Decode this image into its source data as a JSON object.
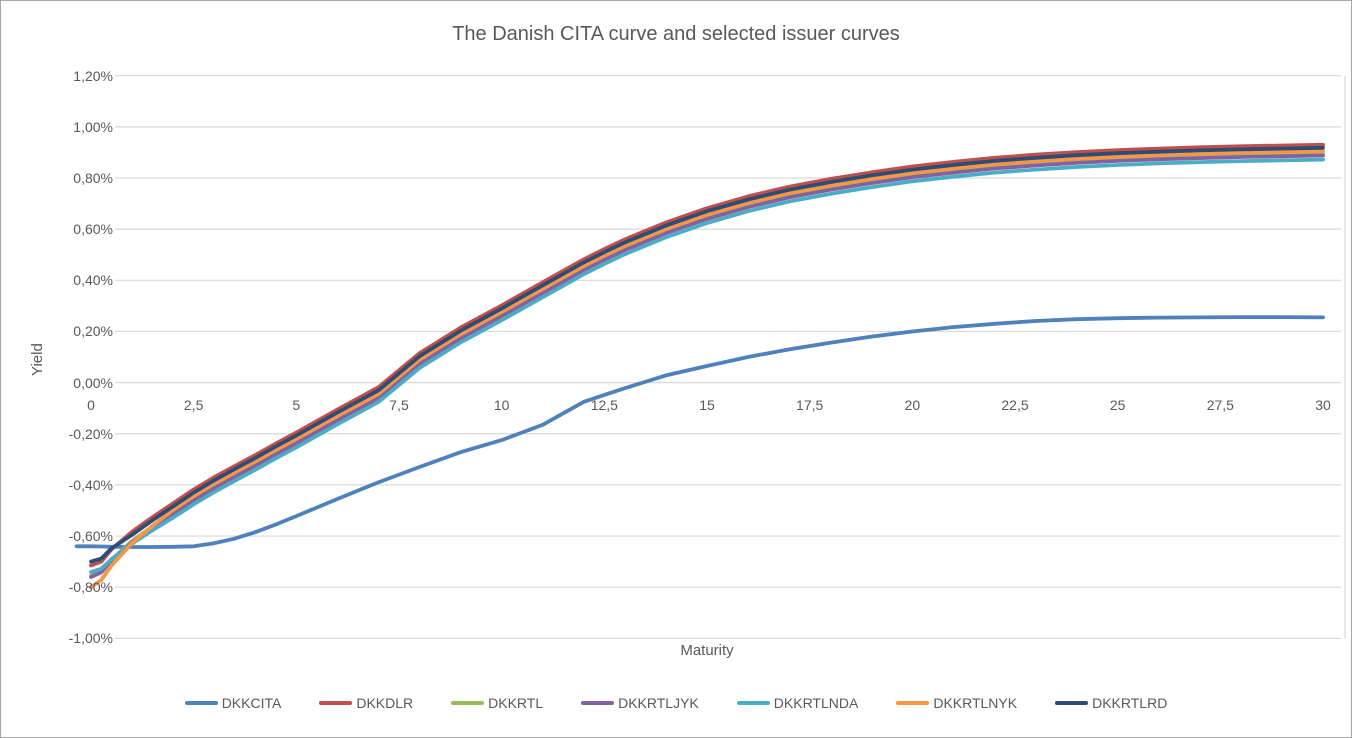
{
  "colors": {
    "text": "#595959",
    "gridline": "#d9d9d9",
    "background": "#ffffff",
    "frame": "#a6a6a6"
  },
  "chart_data": {
    "type": "line",
    "title": "The Danish CITA curve and selected issuer curves",
    "xlabel": "Maturity",
    "ylabel": "Yield",
    "xlim": [
      0,
      30
    ],
    "ylim": [
      -1.0,
      1.2
    ],
    "grid": "horizontal",
    "legend_position": "bottom",
    "y_ticks": [
      {
        "value": 1.2,
        "label": "1,20%"
      },
      {
        "value": 1.0,
        "label": "1,00%"
      },
      {
        "value": 0.8,
        "label": "0,80%"
      },
      {
        "value": 0.6,
        "label": "0,60%"
      },
      {
        "value": 0.4,
        "label": "0,40%"
      },
      {
        "value": 0.2,
        "label": "0,20%"
      },
      {
        "value": 0.0,
        "label": "0,00%"
      },
      {
        "value": -0.2,
        "label": "-0,20%"
      },
      {
        "value": -0.4,
        "label": "-0,40%"
      },
      {
        "value": -0.6,
        "label": "-0,60%"
      },
      {
        "value": -0.8,
        "label": "-0,80%"
      },
      {
        "value": -1.0,
        "label": "-1,00%"
      }
    ],
    "x_ticks": [
      {
        "value": 0,
        "label": "0"
      },
      {
        "value": 2.5,
        "label": "2,5"
      },
      {
        "value": 5,
        "label": "5"
      },
      {
        "value": 7.5,
        "label": "7,5"
      },
      {
        "value": 10,
        "label": "10"
      },
      {
        "value": 12.5,
        "label": "12,5"
      },
      {
        "value": 15,
        "label": "15"
      },
      {
        "value": 17.5,
        "label": "17,5"
      },
      {
        "value": 20,
        "label": "20"
      },
      {
        "value": 22.5,
        "label": "22,5"
      },
      {
        "value": 25,
        "label": "25"
      },
      {
        "value": 27.5,
        "label": "27,5"
      },
      {
        "value": 30,
        "label": "30"
      }
    ],
    "x": [
      0,
      0.25,
      0.5,
      1,
      1.5,
      2,
      2.5,
      3,
      3.5,
      4,
      4.5,
      5,
      6,
      7,
      8,
      9,
      10,
      11,
      12,
      12.5,
      13,
      14,
      15,
      16,
      17,
      18,
      19,
      20,
      21,
      22,
      23,
      24,
      25,
      26,
      27,
      28,
      29,
      30
    ],
    "series": [
      {
        "name": "DKKCITA",
        "color": "#4F81BD",
        "x": [
          -0.35,
          0,
          0.25,
          0.5,
          1,
          1.5,
          2,
          2.5,
          3,
          3.5,
          4,
          4.5,
          5,
          6,
          7,
          8,
          9,
          10,
          11,
          12,
          12.5,
          13,
          14,
          15,
          16,
          17,
          18,
          19,
          20,
          21,
          22,
          23,
          24,
          25,
          26,
          27,
          28,
          29,
          30
        ],
        "values": [
          -0.64,
          -0.64,
          -0.641,
          -0.642,
          -0.643,
          -0.643,
          -0.642,
          -0.64,
          -0.628,
          -0.61,
          -0.585,
          -0.555,
          -0.522,
          -0.455,
          -0.39,
          -0.33,
          -0.272,
          -0.225,
          -0.165,
          -0.075,
          -0.048,
          -0.022,
          0.028,
          0.065,
          0.1,
          0.13,
          0.156,
          0.18,
          0.2,
          0.217,
          0.23,
          0.241,
          0.248,
          0.252,
          0.254,
          0.255,
          0.256,
          0.256,
          0.255
        ]
      },
      {
        "name": "DKKDLR",
        "color": "#C0504D",
        "values": [
          -0.715,
          -0.7,
          -0.652,
          -0.583,
          -0.526,
          -0.472,
          -0.418,
          -0.37,
          -0.326,
          -0.283,
          -0.238,
          -0.195,
          -0.105,
          -0.018,
          0.115,
          0.215,
          0.302,
          0.392,
          0.482,
          0.522,
          0.56,
          0.626,
          0.682,
          0.728,
          0.766,
          0.796,
          0.822,
          0.845,
          0.863,
          0.879,
          0.891,
          0.901,
          0.909,
          0.915,
          0.92,
          0.924,
          0.927,
          0.93
        ]
      },
      {
        "name": "DKKRTL",
        "color": "#9BBB59",
        "values": [
          -0.755,
          -0.738,
          -0.692,
          -0.619,
          -0.562,
          -0.508,
          -0.454,
          -0.406,
          -0.362,
          -0.319,
          -0.274,
          -0.231,
          -0.141,
          -0.054,
          0.079,
          0.179,
          0.266,
          0.356,
          0.446,
          0.486,
          0.524,
          0.59,
          0.646,
          0.692,
          0.73,
          0.76,
          0.786,
          0.809,
          0.827,
          0.843,
          0.855,
          0.865,
          0.873,
          0.879,
          0.884,
          0.888,
          0.891,
          0.894
        ]
      },
      {
        "name": "DKKRTLJYK",
        "color": "#8064A2",
        "values": [
          -0.76,
          -0.742,
          -0.695,
          -0.625,
          -0.568,
          -0.514,
          -0.46,
          -0.412,
          -0.368,
          -0.325,
          -0.28,
          -0.237,
          -0.147,
          -0.06,
          0.073,
          0.173,
          0.26,
          0.35,
          0.44,
          0.48,
          0.518,
          0.584,
          0.64,
          0.686,
          0.724,
          0.754,
          0.78,
          0.803,
          0.821,
          0.837,
          0.849,
          0.859,
          0.867,
          0.873,
          0.878,
          0.882,
          0.885,
          0.888
        ]
      },
      {
        "name": "DKKRTLNDA",
        "color": "#4BACC6",
        "values": [
          -0.74,
          -0.728,
          -0.69,
          -0.63,
          -0.577,
          -0.528,
          -0.476,
          -0.428,
          -0.384,
          -0.341,
          -0.296,
          -0.253,
          -0.163,
          -0.076,
          0.057,
          0.157,
          0.244,
          0.334,
          0.424,
          0.464,
          0.502,
          0.568,
          0.624,
          0.67,
          0.708,
          0.738,
          0.764,
          0.787,
          0.805,
          0.821,
          0.833,
          0.843,
          0.851,
          0.857,
          0.862,
          0.866,
          0.869,
          0.872
        ]
      },
      {
        "name": "DKKRTLNYK",
        "color": "#F79646",
        "values": [
          -0.8,
          -0.772,
          -0.715,
          -0.628,
          -0.56,
          -0.498,
          -0.444,
          -0.396,
          -0.352,
          -0.309,
          -0.264,
          -0.221,
          -0.131,
          -0.044,
          0.089,
          0.189,
          0.276,
          0.366,
          0.456,
          0.496,
          0.534,
          0.6,
          0.656,
          0.702,
          0.74,
          0.77,
          0.796,
          0.819,
          0.837,
          0.853,
          0.865,
          0.875,
          0.883,
          0.889,
          0.894,
          0.898,
          0.901,
          0.904
        ]
      },
      {
        "name": "DKKRTLRD",
        "color": "#2C4D75",
        "values": [
          -0.7,
          -0.688,
          -0.648,
          -0.595,
          -0.538,
          -0.484,
          -0.43,
          -0.382,
          -0.338,
          -0.295,
          -0.25,
          -0.207,
          -0.117,
          -0.03,
          0.103,
          0.203,
          0.29,
          0.38,
          0.47,
          0.51,
          0.548,
          0.614,
          0.67,
          0.716,
          0.754,
          0.784,
          0.81,
          0.833,
          0.851,
          0.867,
          0.879,
          0.889,
          0.897,
          0.903,
          0.908,
          0.912,
          0.915,
          0.918
        ]
      }
    ]
  }
}
